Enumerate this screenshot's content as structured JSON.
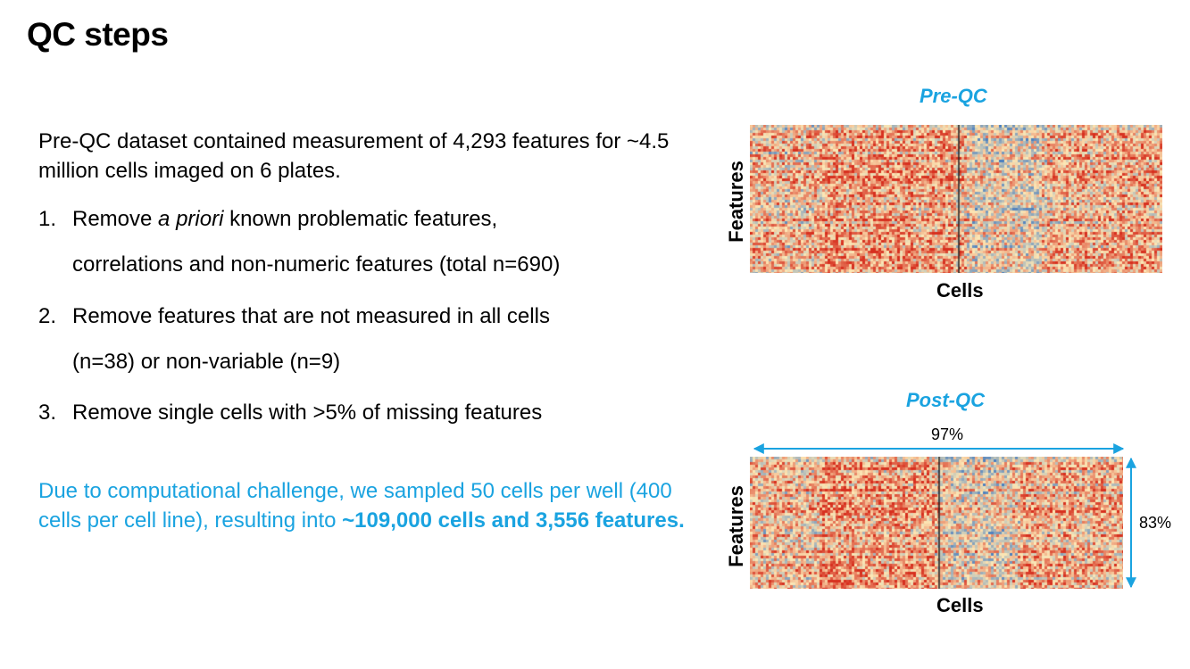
{
  "title": "QC steps",
  "intro": "Pre-QC dataset contained measurement of 4,293 features for ~4.5 million cells imaged on 6 plates.",
  "steps": [
    {
      "num": "1.",
      "line1_pre": "Remove ",
      "line1_em": "a priori",
      "line1_post": " known problematic features,",
      "line2": "correlations and non-numeric features (total n=690)"
    },
    {
      "num": "2.",
      "line1": "Remove features that are not measured in all cells",
      "line2": "(n=38) or non-variable (n=9)"
    },
    {
      "num": "3.",
      "line1": "Remove single cells with >5% of missing features"
    }
  ],
  "note": {
    "text": "Due to computational challenge, we sampled 50 cells per well (400 cells per cell line), resulting into ",
    "bold": "~109,000 cells and 3,556 features."
  },
  "pre_qc": {
    "title": "Pre-QC",
    "ylabel": "Features",
    "xlabel": "Cells"
  },
  "post_qc": {
    "title": "Post-QC",
    "ylabel": "Features",
    "xlabel": "Cells",
    "width_pct": "97%",
    "height_pct": "83%"
  },
  "colors": {
    "accent": "#1aa3e0",
    "heat_high": "#d7301f",
    "heat_mid": "#fde8b6",
    "heat_low": "#4a7fc0"
  }
}
